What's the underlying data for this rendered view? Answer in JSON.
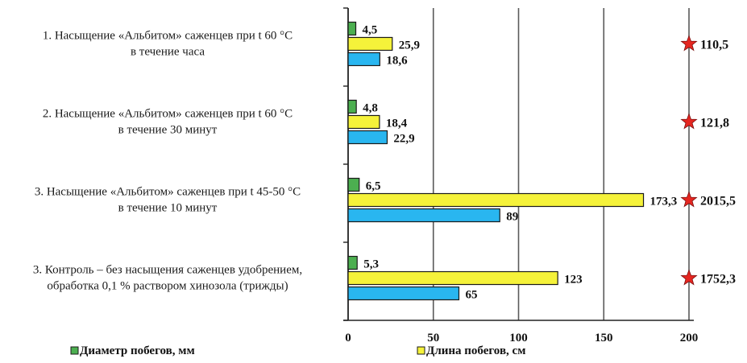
{
  "chart_data": {
    "type": "bar",
    "orientation": "horizontal",
    "categories": [
      [
        "1. Насыщение «Альбитом» саженцев при t 60 °С",
        "в течение часа"
      ],
      [
        "2. Насыщение «Альбитом» саженцев при t 60 °С",
        "в течение 30 минут"
      ],
      [
        "3. Насыщение «Альбитом» саженцев при t 45-50 °С",
        "в течение 10 минут"
      ],
      [
        "3. Контроль – без насыщения саженцев удобрением,",
        "обработка 0,1 % раствором хинозола (трижды)"
      ]
    ],
    "series": [
      {
        "name": "Диаметр побегов, мм",
        "color": "#4caf50",
        "values": [
          4.5,
          4.8,
          6.5,
          5.3
        ],
        "labels": [
          "4,5",
          "4,8",
          "6,5",
          "5,3"
        ]
      },
      {
        "name": "Длина побегов, см",
        "color": "#f5f23a",
        "values": [
          25.9,
          18.4,
          173.3,
          123
        ],
        "labels": [
          "25,9",
          "18,4",
          "173,3",
          "123"
        ]
      },
      {
        "name": "",
        "color": "#29b6f0",
        "values": [
          18.6,
          22.9,
          89,
          65
        ],
        "labels": [
          "18,6",
          "22,9",
          "89",
          "65"
        ]
      }
    ],
    "markers": {
      "color": "#e52620",
      "at": 200,
      "values": [
        110.5,
        121.8,
        2015.5,
        1752.3
      ],
      "labels": [
        "110,5",
        "121,8",
        "2015,5",
        "1752,3"
      ]
    },
    "xlim": [
      0,
      200
    ],
    "xticks": [
      0,
      50,
      100,
      150,
      200
    ],
    "grid": "vertical",
    "legend": "bottom",
    "title": "",
    "xlabel": "",
    "ylabel": ""
  }
}
